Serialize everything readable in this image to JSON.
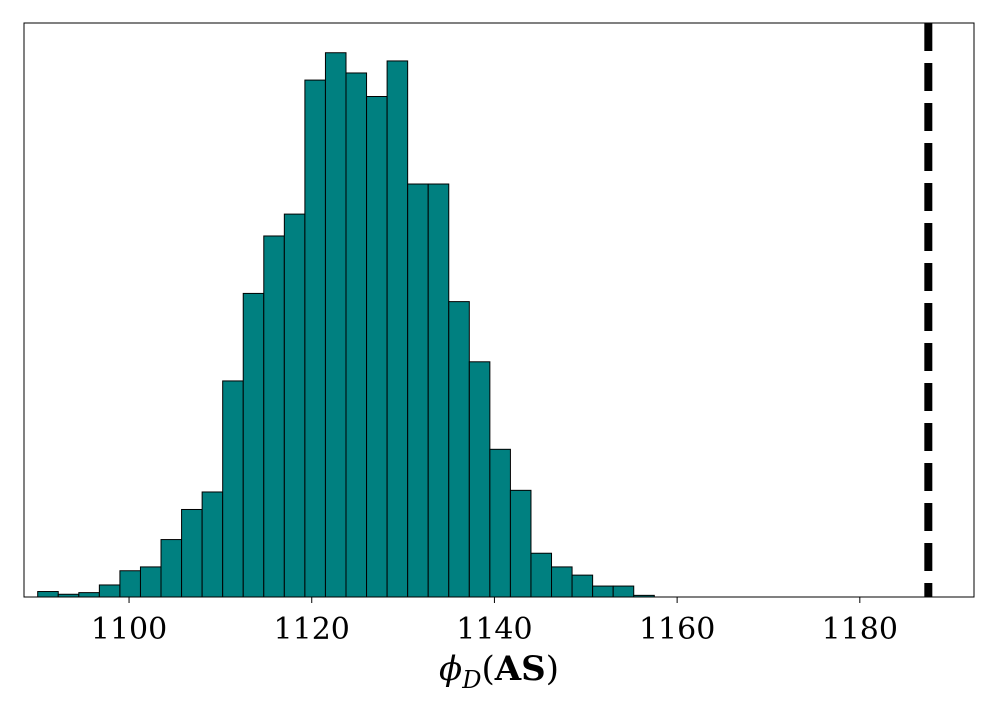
{
  "chart_data": {
    "type": "bar",
    "subtype": "histogram",
    "title": "",
    "xlabel": "ϕD(AS)",
    "xlabel_parts": {
      "symbol": "ϕ",
      "subscript": "D",
      "open": "(",
      "bold": "AS",
      "close": ")"
    },
    "ylabel": "",
    "xlim": [
      1088.5,
      1192.5
    ],
    "ylim": [
      0,
      1
    ],
    "bin_width": 2.25,
    "bin_start": 1090.0,
    "bins_relative_height": [
      0.01,
      0.005,
      0.008,
      0.022,
      0.048,
      0.055,
      0.105,
      0.16,
      0.192,
      0.395,
      0.555,
      0.66,
      0.7,
      0.945,
      0.995,
      0.958,
      0.915,
      0.98,
      0.755,
      0.755,
      0.54,
      0.43,
      0.27,
      0.195,
      0.08,
      0.055,
      0.04,
      0.02,
      0.02,
      0.003
    ],
    "bar_color": "#008080",
    "bar_edge_color": "#000000",
    "x_ticks": [
      1100,
      1120,
      1140,
      1160,
      1180
    ],
    "x_tick_labels": [
      "1100",
      "1120",
      "1140",
      "1160",
      "1180"
    ],
    "reference_line": {
      "x": 1187.5,
      "style": "dashed",
      "color": "#000000"
    },
    "grid": false,
    "legend": "none"
  }
}
